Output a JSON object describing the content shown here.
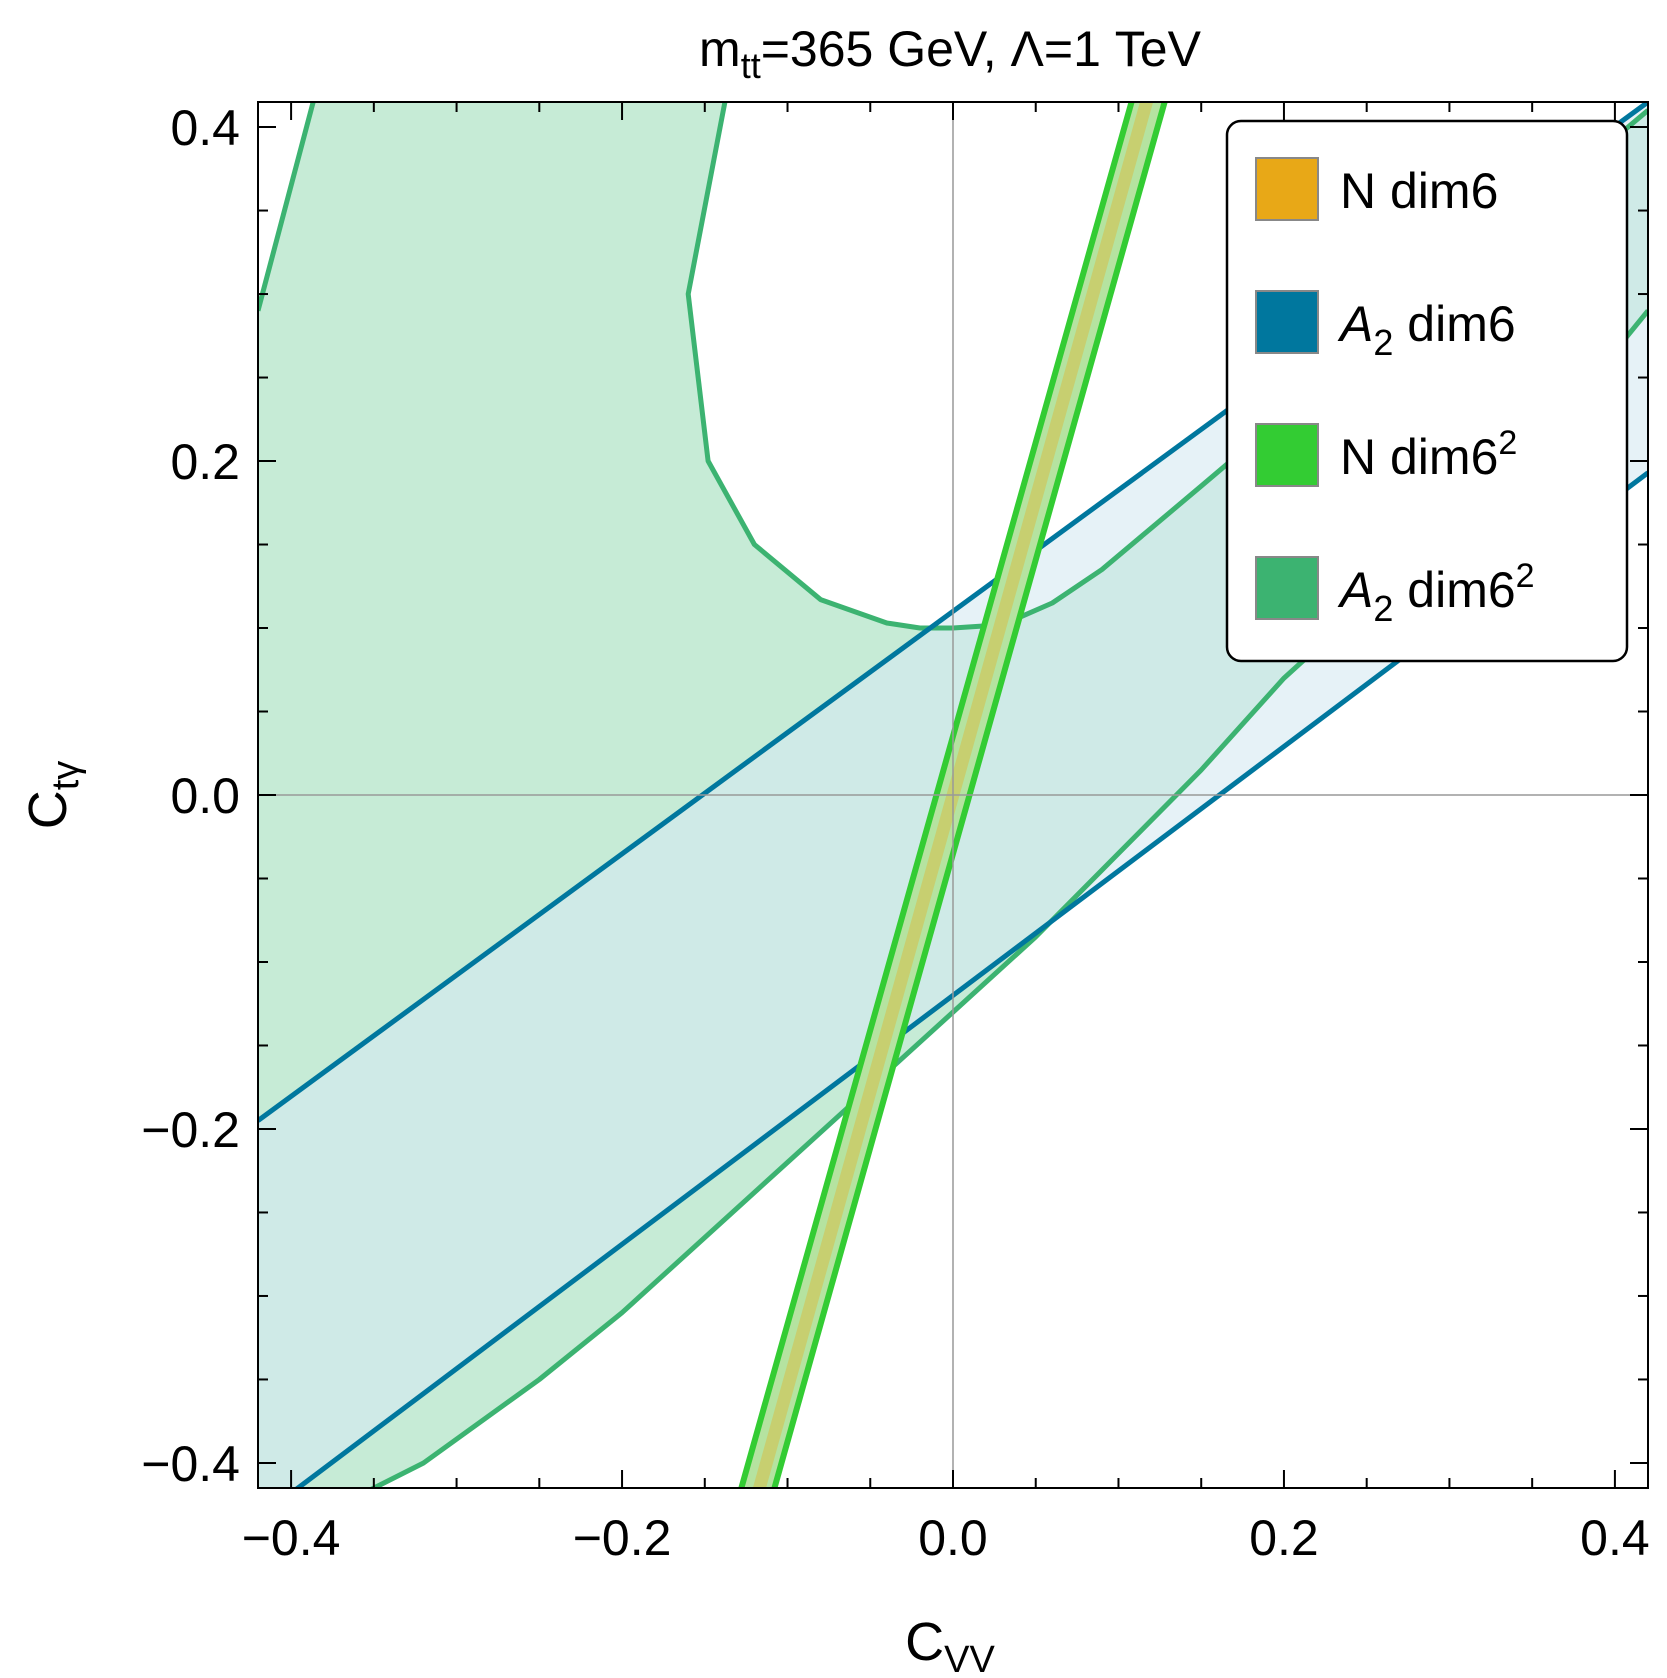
{
  "chart_data": {
    "type": "contour",
    "title": {
      "prefix": "m",
      "sub": "tt",
      "suffix": "=365 GeV, Λ=1 TeV"
    },
    "xlabel": {
      "main": "C",
      "sub": "VV"
    },
    "ylabel": {
      "main": "C",
      "sub": "tγ"
    },
    "xlim": [
      -0.42,
      0.42
    ],
    "ylim": [
      -0.415,
      0.415
    ],
    "xticks": [
      -0.4,
      -0.2,
      0.0,
      0.2,
      0.4
    ],
    "yticks": [
      -0.4,
      -0.2,
      0.0,
      0.2,
      0.4
    ],
    "xtick_labels": [
      "−0.4",
      "−0.2",
      "0.0",
      "0.2",
      "0.4"
    ],
    "ytick_labels": [
      "−0.4",
      "−0.2",
      "0.0",
      "0.2",
      "0.4"
    ],
    "legend_position": "top-right",
    "legend": [
      {
        "key": "n6",
        "label": "N dim6",
        "label_italic": false,
        "label_sub": "",
        "label_sup": "",
        "color": "#E8A817"
      },
      {
        "key": "a6",
        "label": "A",
        "label_italic": true,
        "label_sub": "2",
        "label_tail": " dim6",
        "label_sup": "",
        "color": "#00779E"
      },
      {
        "key": "n62",
        "label": "N  dim6",
        "label_italic": false,
        "label_sub": "",
        "label_sup": "2",
        "color": "#33CC33"
      },
      {
        "key": "a62",
        "label": "A",
        "label_italic": true,
        "label_sub": "2",
        "label_tail": " dim6",
        "label_sup": "2",
        "color": "#3CB371"
      }
    ],
    "series": [
      {
        "name": "A2 dim6 band",
        "color": "#00779E",
        "fill": "#D6E9F1",
        "upper": {
          "x": [
            -0.42,
            0.42
          ],
          "y": [
            -0.195,
            0.415
          ]
        },
        "lower": {
          "x": [
            -0.42,
            0.42
          ],
          "y": [
            -0.433,
            0.193
          ]
        }
      },
      {
        "name": "A2 dim6^2 region",
        "color": "#3CB371",
        "fill": "#B8E6CC",
        "curve_upper_right": [
          [
            -0.133,
            0.44
          ],
          [
            -0.16,
            0.3
          ],
          [
            -0.148,
            0.2
          ],
          [
            -0.12,
            0.15
          ],
          [
            -0.08,
            0.117
          ],
          [
            -0.04,
            0.103
          ],
          [
            -0.02,
            0.1
          ],
          [
            0.0,
            0.1
          ],
          [
            0.03,
            0.102
          ],
          [
            0.06,
            0.115
          ],
          [
            0.09,
            0.135
          ],
          [
            0.12,
            0.16
          ],
          [
            0.15,
            0.185
          ],
          [
            0.2,
            0.227
          ],
          [
            0.25,
            0.268
          ],
          [
            0.3,
            0.31
          ],
          [
            0.36,
            0.36
          ],
          [
            0.42,
            0.41
          ]
        ],
        "curve_left_branch": [
          [
            -0.42,
            0.29
          ],
          [
            -0.38,
            0.44
          ]
        ],
        "curve_lower": [
          [
            -0.4,
            -0.44
          ],
          [
            -0.32,
            -0.4
          ],
          [
            -0.25,
            -0.35
          ],
          [
            -0.2,
            -0.31
          ],
          [
            -0.15,
            -0.265
          ],
          [
            -0.1,
            -0.22
          ],
          [
            -0.05,
            -0.175
          ],
          [
            0.0,
            -0.13
          ],
          [
            0.05,
            -0.085
          ],
          [
            0.1,
            -0.035
          ],
          [
            0.15,
            0.015
          ],
          [
            0.2,
            0.07
          ],
          [
            0.25,
            0.115
          ],
          [
            0.3,
            0.16
          ],
          [
            0.35,
            0.205
          ],
          [
            0.42,
            0.29
          ]
        ]
      },
      {
        "name": "N dim6 band",
        "color": "#E8A817",
        "fill": "#E8A817",
        "center": {
          "x": [
            -0.124,
            0.124
          ],
          "y": [
            -0.44,
            0.44
          ]
        },
        "half_width_x": 0.004
      },
      {
        "name": "N dim6^2 band",
        "color": "#33CC33",
        "fill": "#B5E3A0",
        "left": {
          "x": [
            -0.135,
            0.115
          ],
          "y": [
            -0.44,
            0.44
          ]
        },
        "right": {
          "x": [
            -0.115,
            0.135
          ],
          "y": [
            -0.44,
            0.44
          ]
        }
      }
    ]
  }
}
